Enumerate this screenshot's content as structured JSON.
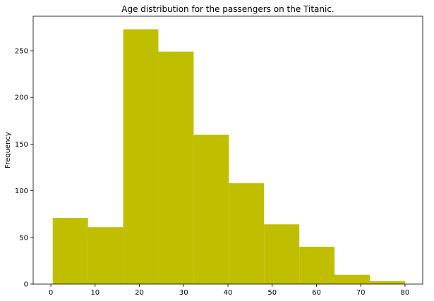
{
  "chart_data": {
    "type": "bar",
    "title": "Age distribution for the passengers on the Titanic.",
    "xlabel": "",
    "ylabel": "Frequency",
    "bins": [
      {
        "start": 0.42,
        "end": 8.38,
        "value": 71
      },
      {
        "start": 8.38,
        "end": 16.34,
        "value": 61
      },
      {
        "start": 16.34,
        "end": 24.29,
        "value": 273
      },
      {
        "start": 24.29,
        "end": 32.25,
        "value": 249
      },
      {
        "start": 32.25,
        "end": 40.21,
        "value": 160
      },
      {
        "start": 40.21,
        "end": 48.17,
        "value": 108
      },
      {
        "start": 48.17,
        "end": 56.13,
        "value": 64
      },
      {
        "start": 56.13,
        "end": 64.08,
        "value": 40
      },
      {
        "start": 64.08,
        "end": 72.04,
        "value": 10
      },
      {
        "start": 72.04,
        "end": 80.0,
        "value": 3
      }
    ],
    "xlim": [
      -4.0,
      84.0
    ],
    "ylim": [
      0,
      287
    ],
    "xticks": [
      0,
      10,
      20,
      30,
      40,
      50,
      60,
      70,
      80
    ],
    "yticks": [
      0,
      50,
      100,
      150,
      200,
      250
    ],
    "bar_color": "#bfbf00",
    "grid": false,
    "legend": false
  }
}
